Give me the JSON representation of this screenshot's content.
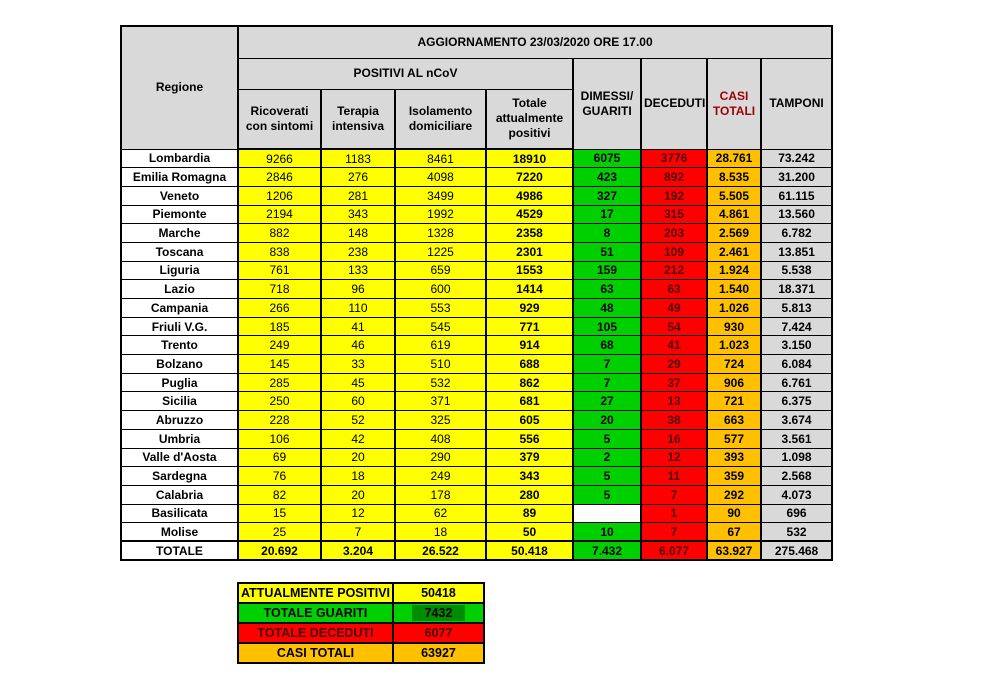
{
  "title": "AGGIORNAMENTO 23/03/2020 ORE 17.00",
  "table": {
    "corner": "Regione",
    "group": "POSITIVI AL nCoV",
    "sub_columns": [
      "Ricoverati con sintomi",
      "Terapia intensiva",
      "Isolamento domiciliare",
      "Totale attualmente positivi"
    ],
    "right_columns": [
      "DIMESSI/\nGUARITI",
      "DECEDUTI",
      "CASI\nTOTALI",
      "TAMPONI"
    ]
  },
  "chart_data": {
    "type": "table",
    "title": "AGGIORNAMENTO 23/03/2020 ORE 17.00",
    "columns": [
      "Regione",
      "Ricoverati con sintomi",
      "Terapia intensiva",
      "Isolamento domiciliare",
      "Totale attualmente positivi",
      "DIMESSI/GUARITI",
      "DECEDUTI",
      "CASI TOTALI",
      "TAMPONI"
    ],
    "rows": [
      [
        "Lombardia",
        "9266",
        "1183",
        "8461",
        "18910",
        "6075",
        "3776",
        "28.761",
        "73.242"
      ],
      [
        "Emilia Romagna",
        "2846",
        "276",
        "4098",
        "7220",
        "423",
        "892",
        "8.535",
        "31.200"
      ],
      [
        "Veneto",
        "1206",
        "281",
        "3499",
        "4986",
        "327",
        "192",
        "5.505",
        "61.115"
      ],
      [
        "Piemonte",
        "2194",
        "343",
        "1992",
        "4529",
        "17",
        "315",
        "4.861",
        "13.560"
      ],
      [
        "Marche",
        "882",
        "148",
        "1328",
        "2358",
        "8",
        "203",
        "2.569",
        "6.782"
      ],
      [
        "Toscana",
        "838",
        "238",
        "1225",
        "2301",
        "51",
        "109",
        "2.461",
        "13.851"
      ],
      [
        "Liguria",
        "761",
        "133",
        "659",
        "1553",
        "159",
        "212",
        "1.924",
        "5.538"
      ],
      [
        "Lazio",
        "718",
        "96",
        "600",
        "1414",
        "63",
        "63",
        "1.540",
        "18.371"
      ],
      [
        "Campania",
        "266",
        "110",
        "553",
        "929",
        "48",
        "49",
        "1.026",
        "5.813"
      ],
      [
        "Friuli V.G.",
        "185",
        "41",
        "545",
        "771",
        "105",
        "54",
        "930",
        "7.424"
      ],
      [
        "Trento",
        "249",
        "46",
        "619",
        "914",
        "68",
        "41",
        "1.023",
        "3.150"
      ],
      [
        "Bolzano",
        "145",
        "33",
        "510",
        "688",
        "7",
        "29",
        "724",
        "6.084"
      ],
      [
        "Puglia",
        "285",
        "45",
        "532",
        "862",
        "7",
        "37",
        "906",
        "6.761"
      ],
      [
        "Sicilia",
        "250",
        "60",
        "371",
        "681",
        "27",
        "13",
        "721",
        "6.375"
      ],
      [
        "Abruzzo",
        "228",
        "52",
        "325",
        "605",
        "20",
        "38",
        "663",
        "3.674"
      ],
      [
        "Umbria",
        "106",
        "42",
        "408",
        "556",
        "5",
        "16",
        "577",
        "3.561"
      ],
      [
        "Valle d'Aosta",
        "69",
        "20",
        "290",
        "379",
        "2",
        "12",
        "393",
        "1.098"
      ],
      [
        "Sardegna",
        "76",
        "18",
        "249",
        "343",
        "5",
        "11",
        "359",
        "2.568"
      ],
      [
        "Calabria",
        "82",
        "20",
        "178",
        "280",
        "5",
        "7",
        "292",
        "4.073"
      ],
      [
        "Basilicata",
        "15",
        "12",
        "62",
        "89",
        "",
        "1",
        "90",
        "696"
      ],
      [
        "Molise",
        "25",
        "7",
        "18",
        "50",
        "10",
        "7",
        "67",
        "532"
      ]
    ],
    "total_row": [
      "TOTALE",
      "20.692",
      "3.204",
      "26.522",
      "50.418",
      "7.432",
      "6.077",
      "63.927",
      "275.468"
    ]
  },
  "summary": {
    "rows": [
      {
        "label": "ATTUALMENTE POSITIVI",
        "value": "50418",
        "color": "#FFFF00",
        "highlighted": false
      },
      {
        "label": "TOTALE GUARITI",
        "value": "7432",
        "color": "#00CF00",
        "highlighted": true
      },
      {
        "label": "TOTALE DECEDUTI",
        "value": "6077",
        "color": "#FF0000",
        "highlighted": false
      },
      {
        "label": "CASI TOTALI",
        "value": "63927",
        "color": "#FFC000",
        "highlighted": false
      }
    ]
  },
  "colors": {
    "header_bg": "#D9D9D9",
    "yellow": "#FFFF00",
    "green": "#00CF00",
    "red": "#FF0000",
    "orange": "#FFC000",
    "gray": "#D9D9D9",
    "casi_totali_header_text": "#9C0006",
    "red_cell_text": "#4A0404"
  }
}
